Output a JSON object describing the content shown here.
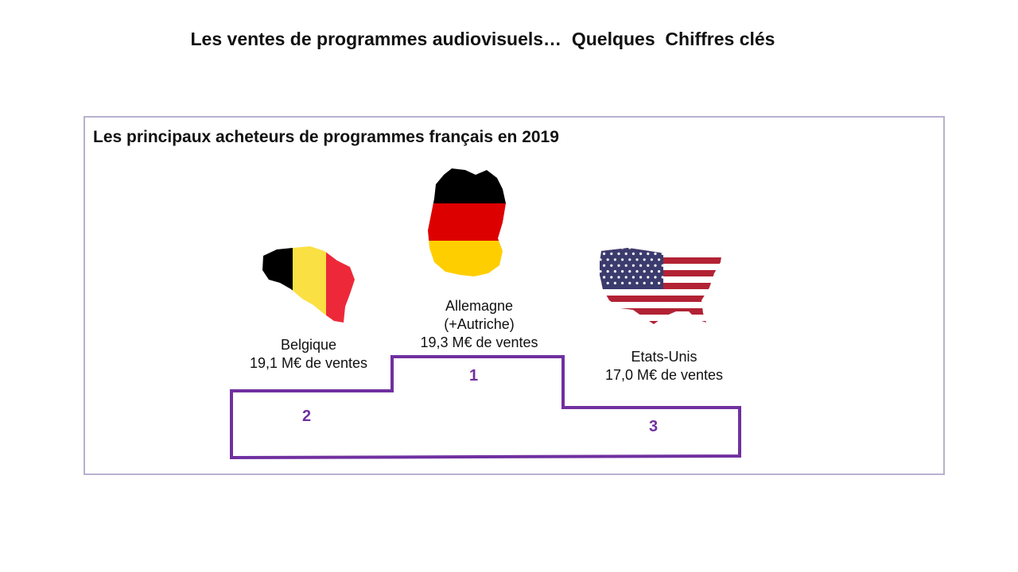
{
  "slide": {
    "title": "Les ventes de programmes audiovisuels…  Quelques  Chiffres clés"
  },
  "panel": {
    "title": "Les principaux acheteurs de programmes français en 2019"
  },
  "buyers": [
    {
      "rank": "1",
      "name_lines": [
        "Allemagne",
        "(+Autriche)"
      ],
      "sales": "19,3 M€ de ventes",
      "value": 19.3,
      "flag_icon": "germany-map-flag-icon",
      "colors": [
        "#000000",
        "#dd0000",
        "#ffce00"
      ]
    },
    {
      "rank": "2",
      "name_lines": [
        "Belgique"
      ],
      "sales": "19,1 M€ de ventes",
      "value": 19.1,
      "flag_icon": "belgium-map-flag-icon",
      "colors": [
        "#000000",
        "#fae042",
        "#ed2939"
      ]
    },
    {
      "rank": "3",
      "name_lines": [
        "Etats-Unis"
      ],
      "sales": "17,0 M€ de ventes",
      "value": 17.0,
      "flag_icon": "usa-map-flag-icon",
      "colors": [
        "#b22234",
        "#ffffff",
        "#3c3b6e"
      ]
    }
  ],
  "podium_color": "#7030a0"
}
